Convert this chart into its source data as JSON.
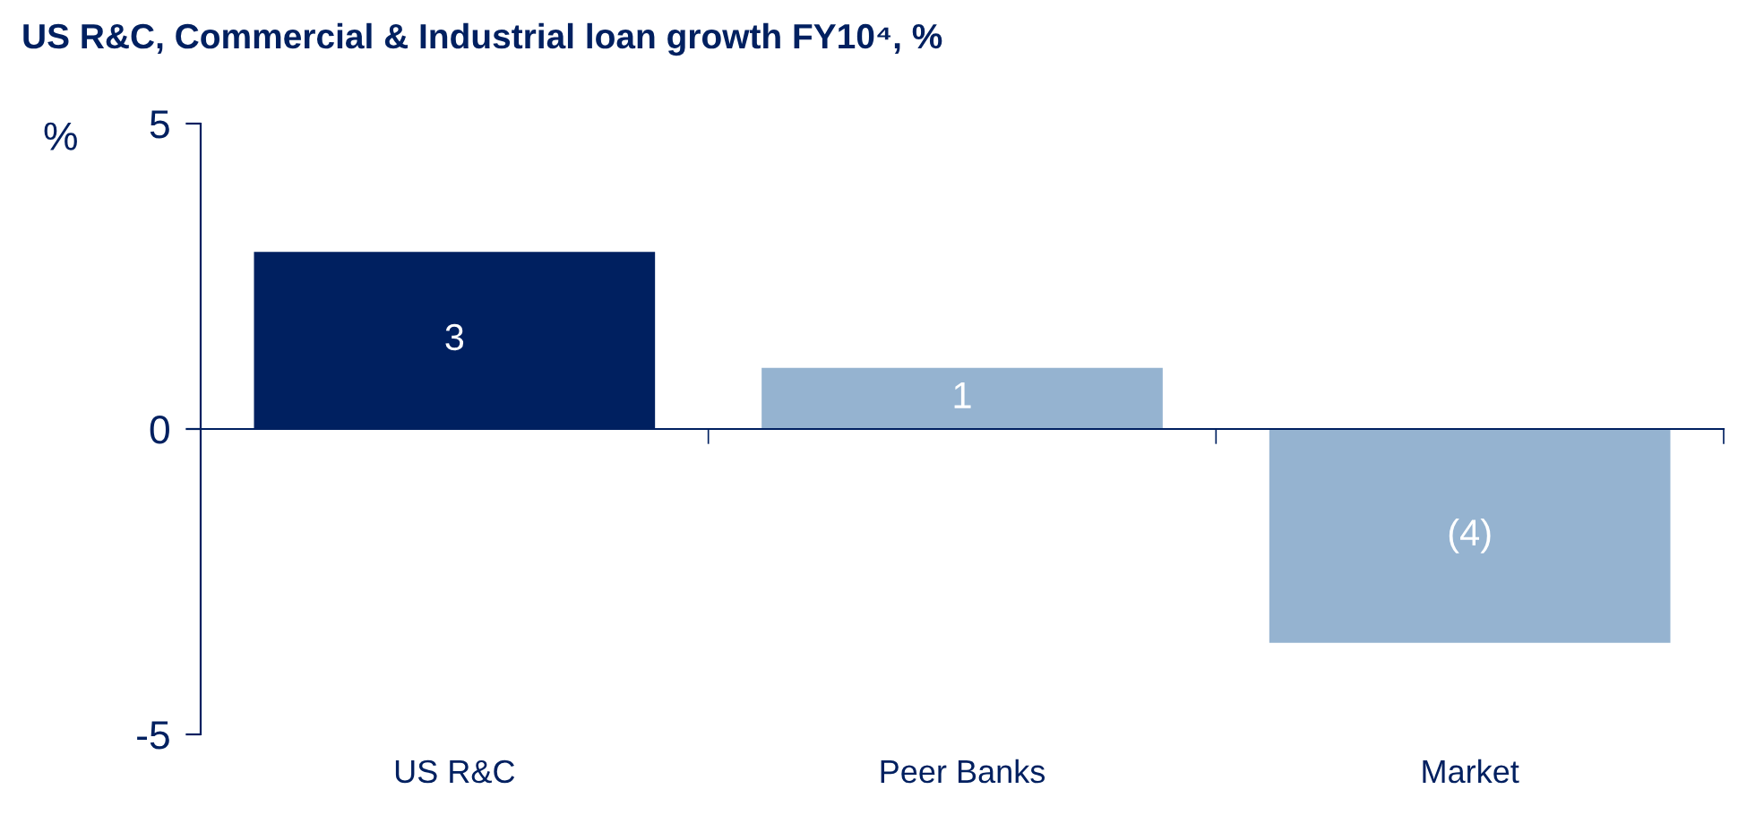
{
  "chart_data": {
    "type": "bar",
    "title": "US R&C, Commercial & Industrial loan growth FY10⁴, %",
    "ylabel": "%",
    "categories": [
      "US R&C",
      "Peer Banks",
      "Market"
    ],
    "values": [
      2.9,
      1.0,
      -3.5
    ],
    "colors": [
      "#002060",
      "#95b3d0",
      "#95b3d0"
    ],
    "value_labels": [
      "3",
      "1",
      "(4)"
    ],
    "ylim": [
      -5,
      5
    ],
    "yticks": [
      -5,
      0,
      5
    ],
    "grid": false,
    "legend": false
  }
}
